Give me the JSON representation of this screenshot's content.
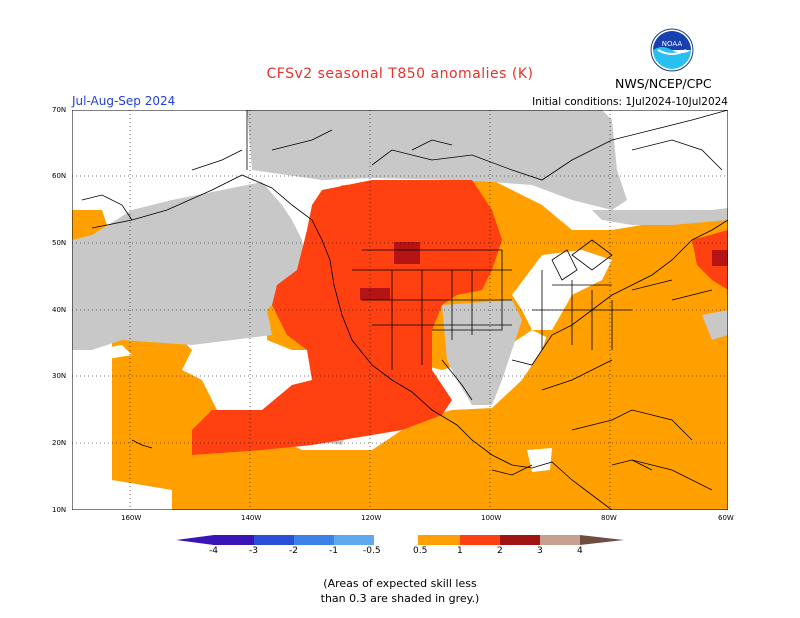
{
  "title": "CFSv2 seasonal T850 anomalies (K)",
  "season": "Jul-Aug-Sep 2024",
  "initial_conditions": "Initial conditions: 1Jul2024-10Jul2024",
  "org": "NWS/NCEP/CPC",
  "logo_text": "NOAA",
  "lat_labels": [
    "70N",
    "60N",
    "50N",
    "40N",
    "30N",
    "20N",
    "10N"
  ],
  "lon_labels": [
    "160W",
    "140W",
    "120W",
    "100W",
    "80W",
    "60W"
  ],
  "colorbar_labels": [
    "-4",
    "-3",
    "-2",
    "-1",
    "-0.5",
    "0.5",
    "1",
    "2",
    "3",
    "4"
  ],
  "note_line1": "(Areas of expected skill less",
  "note_line2": "than 0.3 are shaded in grey.)",
  "colors": {
    "grey": "#c8c8c8",
    "orange": "#ffa000",
    "red_orange": "#ff4010",
    "dark_red": "#b41414",
    "neg4": "#3a14b4",
    "neg3": "#2a50d8",
    "neg2": "#3c82e8",
    "neg1": "#60a8f0",
    "neg05": "#94c8f8",
    "pos3": "#a01414",
    "pos4": "#c8a090",
    "pos5": "#6e4e40"
  }
}
